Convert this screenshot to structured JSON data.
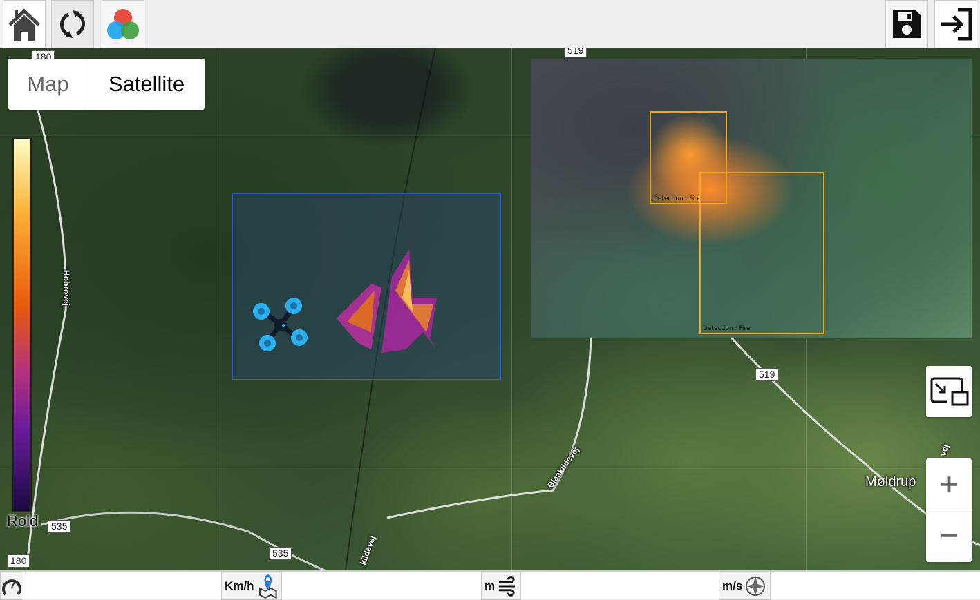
{
  "toolbar": {
    "left": [
      {
        "icon": "home-icon"
      },
      {
        "icon": "refresh-icon"
      },
      {
        "icon": "color-channels-icon"
      }
    ],
    "right": [
      {
        "icon": "save-icon"
      },
      {
        "icon": "logout-icon"
      }
    ]
  },
  "map": {
    "type_control": {
      "options": [
        "Map",
        "Satellite"
      ],
      "selected": "Satellite"
    },
    "road_shields": [
      "180",
      "519",
      "519",
      "535",
      "535",
      "180"
    ],
    "road_labels": [
      "Hobrovej",
      "Blaakildevej",
      "kildevej",
      "Møldrup",
      "vej"
    ],
    "colorbar": {
      "label": "Rold",
      "colors": [
        "#fcfdbf",
        "#fcb034",
        "#e8590c",
        "#b6337a",
        "#6a1b9a",
        "#1a0a40"
      ]
    },
    "drone": {
      "icon": "drone-icon",
      "color": "#2ab0f0"
    },
    "zoom": {
      "in": "+",
      "out": "−"
    },
    "pip_icon": "picture-in-picture-icon"
  },
  "video": {
    "detections": [
      {
        "label": "Detection : Fire"
      },
      {
        "label": "Detection : Fire"
      }
    ],
    "box_color": "#f0a818"
  },
  "statusbar": {
    "items": [
      {
        "unit": "",
        "icon": "speedometer-icon"
      },
      {
        "unit": "Km/h",
        "icon": "map-pin-icon"
      },
      {
        "unit": "m",
        "icon": "wind-icon"
      },
      {
        "unit": "m/s",
        "icon": "compass-icon"
      }
    ]
  }
}
